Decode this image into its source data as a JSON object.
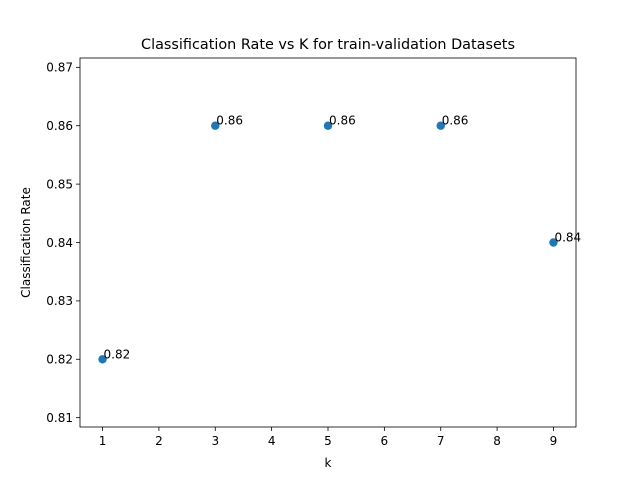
{
  "chart_data": {
    "type": "scatter",
    "title": "Classification Rate vs K for train-validation Datasets",
    "xlabel": "k",
    "ylabel": "Classification Rate",
    "xlim": [
      0.6,
      9.4
    ],
    "ylim": [
      0.8084,
      0.8716
    ],
    "xticks": [
      1,
      2,
      3,
      4,
      5,
      6,
      7,
      8,
      9
    ],
    "yticks": [
      0.81,
      0.82,
      0.83,
      0.84,
      0.85,
      0.86,
      0.87
    ],
    "ytick_labels": [
      "0.81",
      "0.82",
      "0.83",
      "0.84",
      "0.85",
      "0.86",
      "0.87"
    ],
    "x": [
      1,
      3,
      5,
      7,
      9
    ],
    "y": [
      0.82,
      0.86,
      0.86,
      0.86,
      0.84
    ],
    "point_labels": [
      "0.82",
      "0.86",
      "0.86",
      "0.86",
      "0.84"
    ],
    "marker_color": "#1f77b4",
    "grid": false,
    "legend": false
  }
}
